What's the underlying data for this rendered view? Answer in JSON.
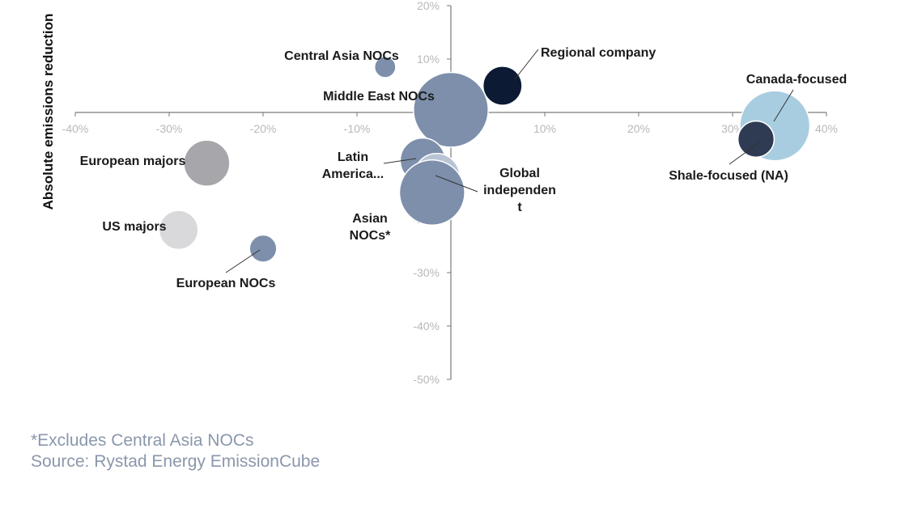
{
  "chart_data": {
    "type": "scatter",
    "ylabel": "Absolute emissions reduction",
    "xlabel": "",
    "x_ticks": [
      "-40%",
      "-30%",
      "-20%",
      "-10%",
      "0%",
      "10%",
      "20%",
      "30%",
      "40%"
    ],
    "y_ticks": [
      "20%",
      "10%",
      "0%",
      "-10%",
      "-20%",
      "-30%",
      "-40%",
      "-50%"
    ],
    "xlim": [
      -40,
      40
    ],
    "ylim": [
      -50,
      20
    ],
    "grid": false,
    "bubbles": [
      {
        "label": "Central Asia NOCs",
        "x": -7,
        "y": 8.5,
        "size": 1,
        "color": "#7d8fab"
      },
      {
        "label": "Regional company",
        "x": 5.5,
        "y": 5,
        "size": 10,
        "color": "#0c1a33"
      },
      {
        "label": "Middle East NOCs",
        "x": 0,
        "y": 0.5,
        "size": 56,
        "color": "#7d8fab"
      },
      {
        "label": "Canada-focused",
        "x": 34.5,
        "y": -2.5,
        "size": 48,
        "color": "#a9cde0"
      },
      {
        "label": "Shale-focused (NA)",
        "x": 32.5,
        "y": -5,
        "size": 8,
        "color": "#2e3b52"
      },
      {
        "label": "European majors",
        "x": -26,
        "y": -9.5,
        "size": 16,
        "color": "#a6a6ab"
      },
      {
        "label": "Latin America...",
        "x": -3,
        "y": -9,
        "size": 15,
        "color": "#7d8fab"
      },
      {
        "label": "Global independen t",
        "x": -1.5,
        "y": -12,
        "size": 16,
        "color": "#b9c4d3"
      },
      {
        "label": "Asian NOCs*",
        "x": -2,
        "y": -15,
        "size": 40,
        "color": "#7d8fab"
      },
      {
        "label": "US majors",
        "x": -29,
        "y": -22,
        "size": 10,
        "color": "#d9d9db"
      },
      {
        "label": "European NOCs",
        "x": -20,
        "y": -25.5,
        "size": 3,
        "color": "#7d8fab"
      }
    ]
  },
  "footnotes": {
    "note": "*Excludes Central Asia NOCs",
    "source": "Source: Rystad Energy EmissionCube"
  }
}
